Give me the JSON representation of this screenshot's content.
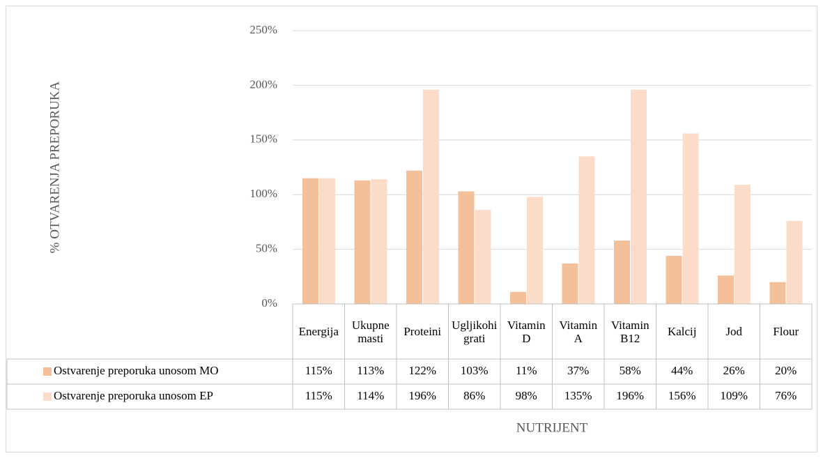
{
  "chart_data": {
    "type": "bar",
    "y_label": "% OTVARENJA PREPORUKA",
    "x_label": "NUTRIJENT",
    "categories": [
      "Energija",
      "Ukupne masti",
      "Proteini",
      "Ugljikohigrati",
      "Vitamin D",
      "Vitamin A",
      "Vitamin B12",
      "Kalcij",
      "Jod",
      "Flour"
    ],
    "series": [
      {
        "name": "Ostvarenje preporuka unosom MO",
        "color": "#f4c09a",
        "values": [
          115,
          113,
          122,
          103,
          11,
          37,
          58,
          44,
          26,
          20
        ],
        "value_labels": [
          "115%",
          "113%",
          "122%",
          "103%",
          "11%",
          "37%",
          "58%",
          "44%",
          "26%",
          "20%"
        ]
      },
      {
        "name": "Ostvarenje preporuka unosom EP",
        "color": "#fbdcc8",
        "values": [
          115,
          114,
          196,
          86,
          98,
          135,
          196,
          156,
          109,
          76
        ],
        "value_labels": [
          "115%",
          "114%",
          "196%",
          "86%",
          "98%",
          "135%",
          "196%",
          "156%",
          "109%",
          "76%"
        ]
      }
    ],
    "ylim": [
      0,
      250
    ],
    "yticks": [
      {
        "value": 0,
        "label": "0%"
      },
      {
        "value": 50,
        "label": "50%"
      },
      {
        "value": 100,
        "label": "100%"
      },
      {
        "value": 150,
        "label": "150%"
      },
      {
        "value": 200,
        "label": "200%"
      },
      {
        "value": 250,
        "label": "250%"
      }
    ],
    "grid": true
  }
}
